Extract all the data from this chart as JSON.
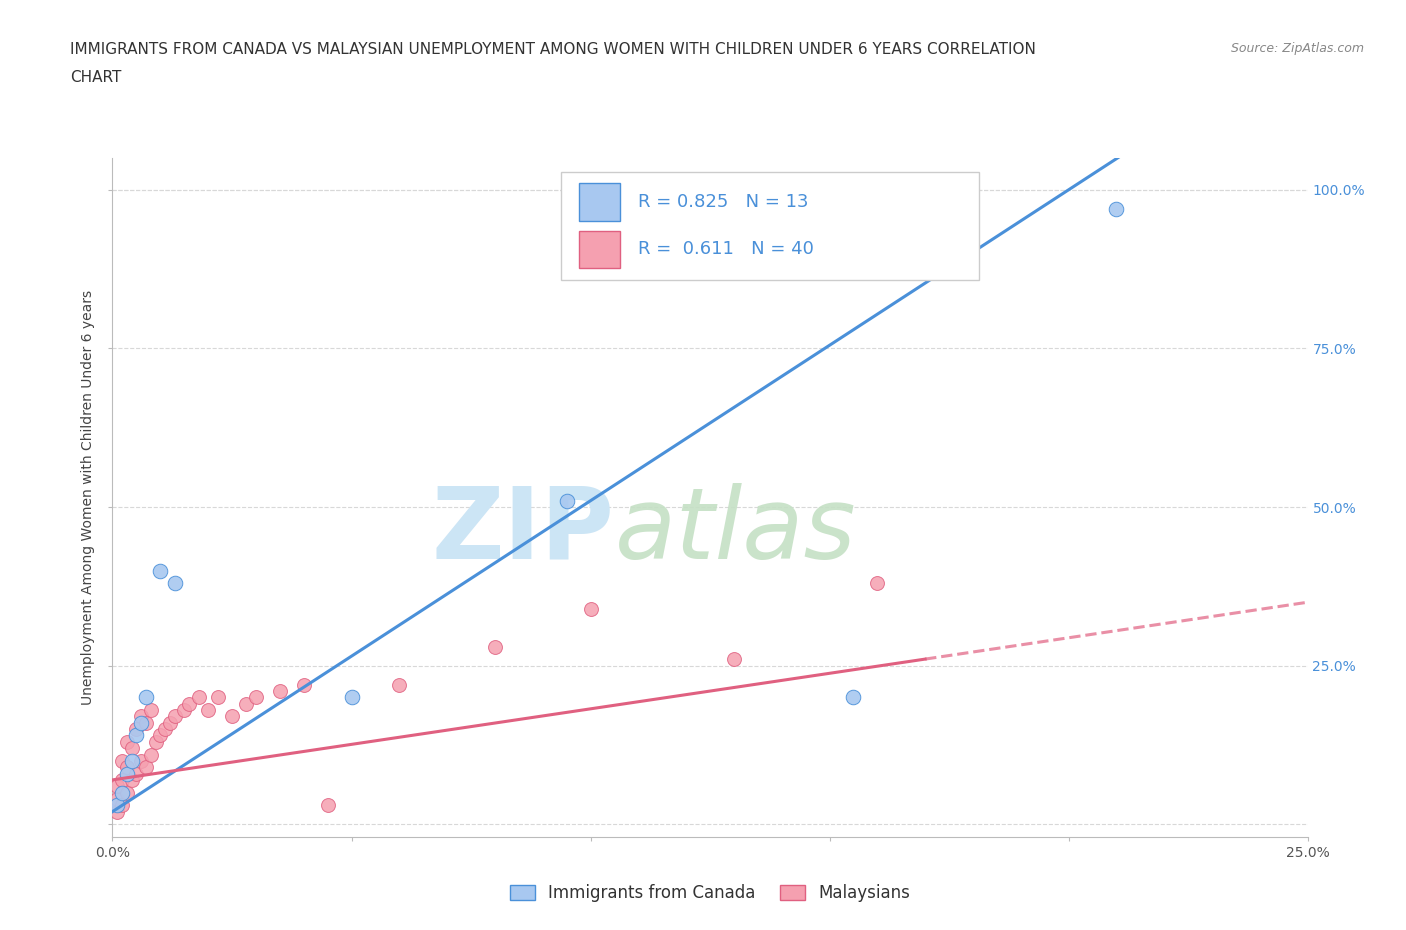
{
  "title_line1": "IMMIGRANTS FROM CANADA VS MALAYSIAN UNEMPLOYMENT AMONG WOMEN WITH CHILDREN UNDER 6 YEARS CORRELATION",
  "title_line2": "CHART",
  "source": "Source: ZipAtlas.com",
  "ylabel": "Unemployment Among Women with Children Under 6 years",
  "blue_R": 0.825,
  "blue_N": 13,
  "pink_R": 0.611,
  "pink_N": 40,
  "blue_label": "Immigrants from Canada",
  "pink_label": "Malaysians",
  "blue_color": "#a8c8f0",
  "blue_line_color": "#4a90d9",
  "pink_color": "#f5a0b0",
  "pink_line_color": "#e06080",
  "legend_R_color": "#4a90d9",
  "background_color": "#ffffff",
  "grid_color": "#d8d8d8",
  "xlim": [
    0.0,
    0.25
  ],
  "ylim": [
    -0.02,
    1.05
  ],
  "x_ticks": [
    0.0,
    0.05,
    0.1,
    0.15,
    0.2,
    0.25
  ],
  "x_tick_labels": [
    "0.0%",
    "",
    "",
    "",
    "",
    "25.0%"
  ],
  "y_ticks": [
    0.0,
    0.25,
    0.5,
    0.75,
    1.0
  ],
  "y_tick_right_labels": [
    "",
    "25.0%",
    "50.0%",
    "75.0%",
    "100.0%"
  ],
  "blue_x": [
    0.001,
    0.002,
    0.003,
    0.004,
    0.005,
    0.006,
    0.007,
    0.01,
    0.013,
    0.05,
    0.095,
    0.155,
    0.21
  ],
  "blue_y": [
    0.03,
    0.05,
    0.08,
    0.1,
    0.14,
    0.16,
    0.2,
    0.4,
    0.38,
    0.2,
    0.51,
    0.2,
    0.97
  ],
  "pink_x": [
    0.001,
    0.001,
    0.001,
    0.002,
    0.002,
    0.002,
    0.003,
    0.003,
    0.003,
    0.004,
    0.004,
    0.005,
    0.005,
    0.006,
    0.006,
    0.007,
    0.007,
    0.008,
    0.008,
    0.009,
    0.01,
    0.011,
    0.012,
    0.013,
    0.015,
    0.016,
    0.018,
    0.02,
    0.022,
    0.025,
    0.028,
    0.03,
    0.035,
    0.04,
    0.045,
    0.06,
    0.08,
    0.1,
    0.13,
    0.16
  ],
  "pink_y": [
    0.02,
    0.04,
    0.06,
    0.03,
    0.07,
    0.1,
    0.05,
    0.09,
    0.13,
    0.07,
    0.12,
    0.08,
    0.15,
    0.1,
    0.17,
    0.09,
    0.16,
    0.11,
    0.18,
    0.13,
    0.14,
    0.15,
    0.16,
    0.17,
    0.18,
    0.19,
    0.2,
    0.18,
    0.2,
    0.17,
    0.19,
    0.2,
    0.21,
    0.22,
    0.03,
    0.22,
    0.28,
    0.34,
    0.26,
    0.38
  ],
  "title_fontsize": 11,
  "axis_label_fontsize": 10,
  "tick_fontsize": 10,
  "legend_fontsize": 13,
  "source_fontsize": 9
}
